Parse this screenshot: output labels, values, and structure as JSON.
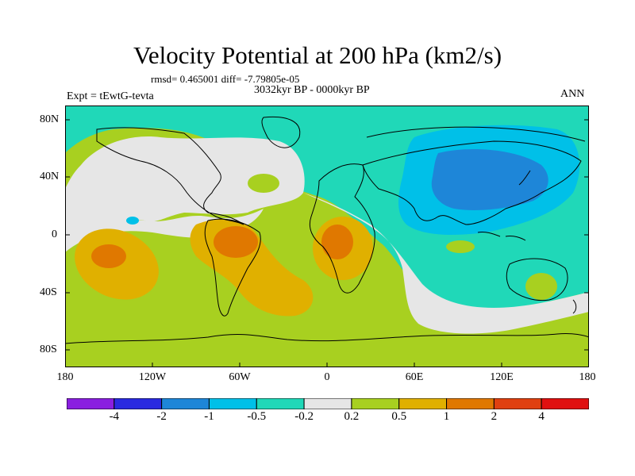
{
  "title": "Velocity Potential at 200 hPa (km2/s)",
  "stats": "rmsd= 0.465001 diff= -7.79805e-05",
  "period": "3032kyr BP - 0000kyr BP",
  "experiment": "Expt = tEwtG-tevta",
  "season": "ANN",
  "lat_labels": [
    "80N",
    "40N",
    "0",
    "40S",
    "80S"
  ],
  "lon_labels": [
    "180",
    "120W",
    "60W",
    "0",
    "60E",
    "120E",
    "180"
  ],
  "colorbar": {
    "labels": [
      "-4",
      "-2",
      "-1",
      "-0.5",
      "-0.2",
      "0.2",
      "0.5",
      "1",
      "2",
      "4"
    ],
    "colors": [
      "#8a1fe0",
      "#2a2ae0",
      "#1e86d8",
      "#00c0e8",
      "#20d8b8",
      "#e6e6e6",
      "#a8d020",
      "#e0b000",
      "#e07800",
      "#e02010"
    ]
  },
  "palette": {
    "teal": "#20d8b8",
    "cyan": "#00c0e8",
    "blue": "#1e86d8",
    "white": "#e6e6e6",
    "yellowgreen": "#a8d020",
    "orange": "#e0b000",
    "darkorange": "#e07800"
  }
}
